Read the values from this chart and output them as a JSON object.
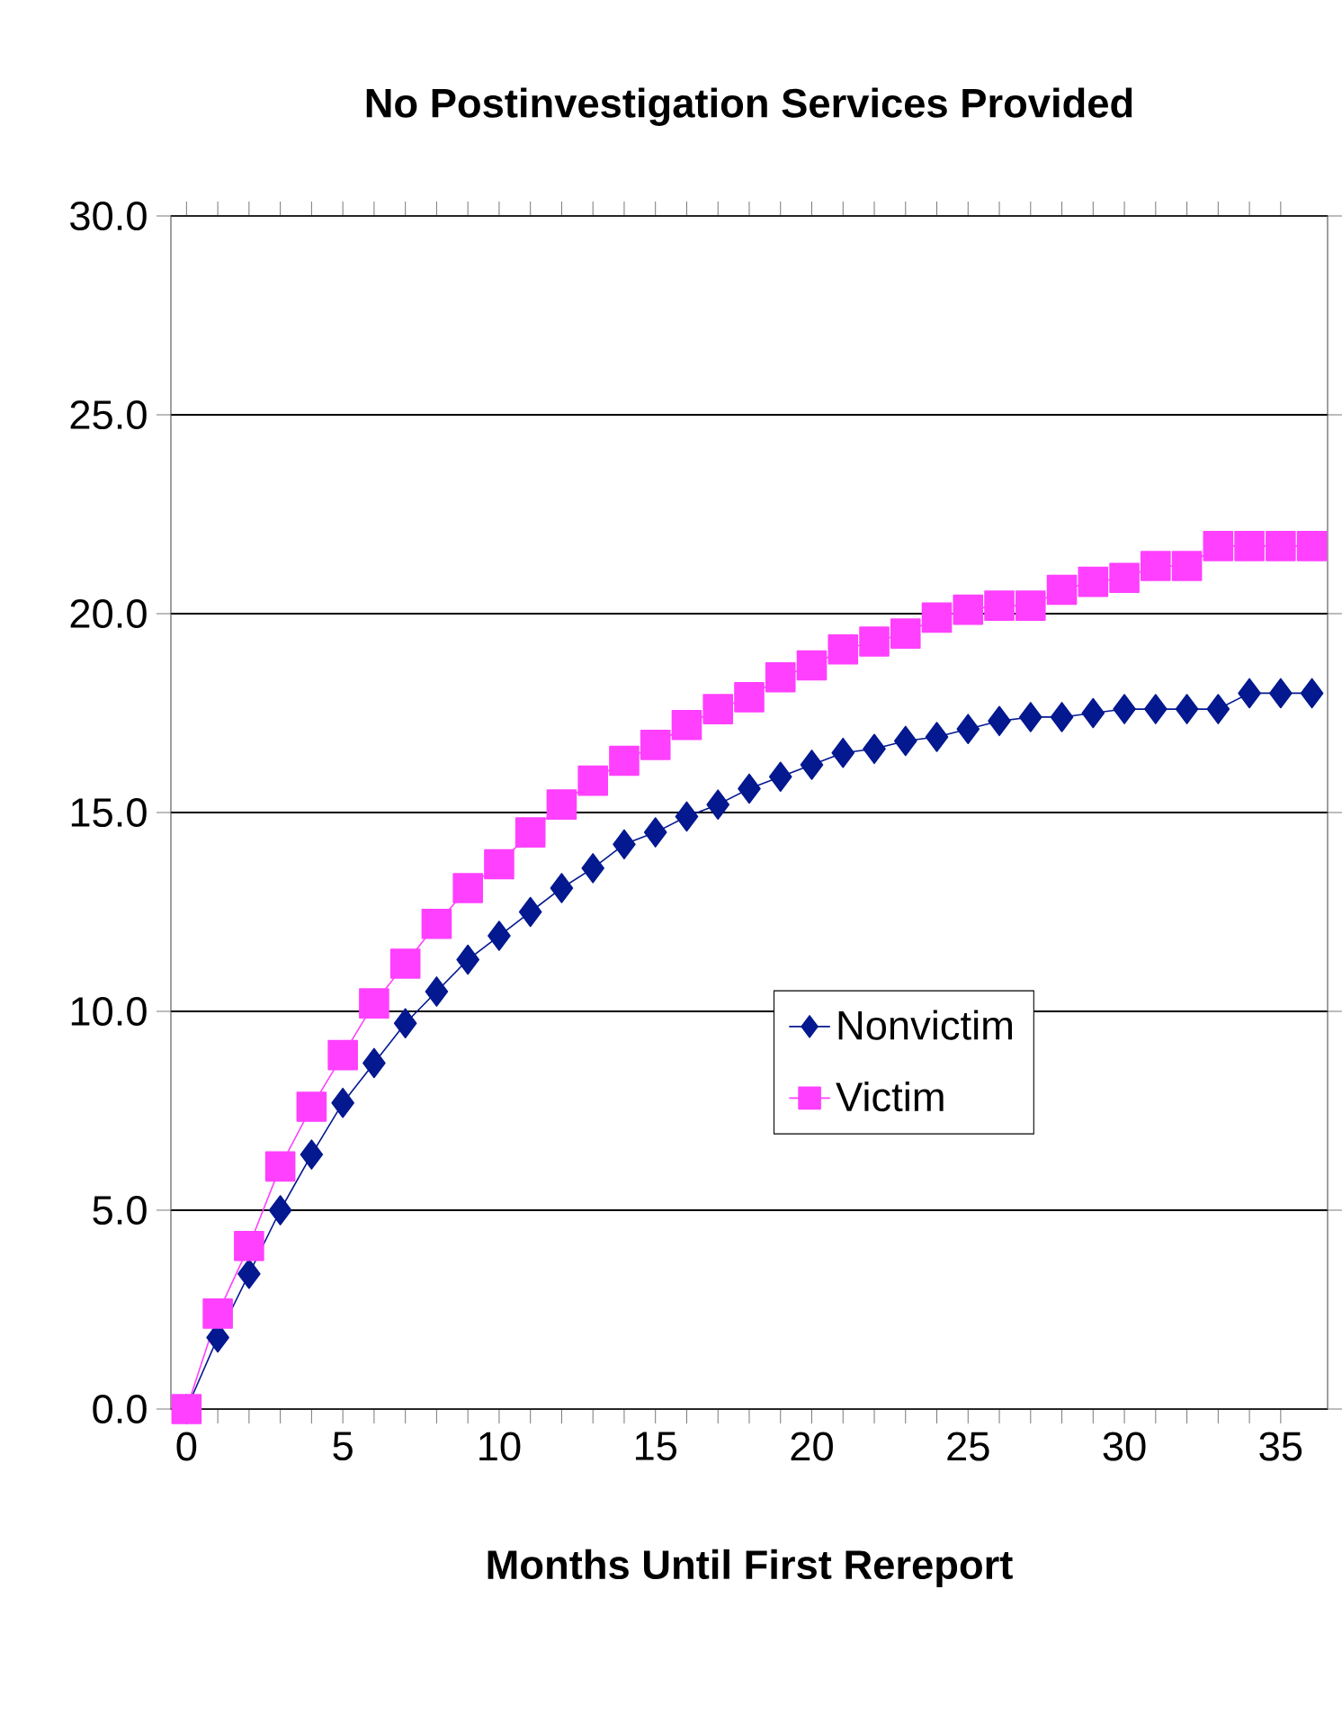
{
  "chart_data": {
    "type": "line",
    "title": "No Postinvestigation Services Provided",
    "xlabel": "Months Until First Rereport",
    "x": [
      0,
      1,
      2,
      3,
      4,
      5,
      6,
      7,
      8,
      9,
      10,
      11,
      12,
      13,
      14,
      15,
      16,
      17,
      18,
      19,
      20,
      21,
      22,
      23,
      24,
      25,
      26,
      27,
      28,
      29,
      30,
      31,
      32,
      33,
      34,
      35,
      36
    ],
    "series": [
      {
        "name": "Nonvictim",
        "color": "#041890",
        "marker": "diamond",
        "values": [
          0,
          1.8,
          3.4,
          5.0,
          6.4,
          7.7,
          8.7,
          9.7,
          10.5,
          11.3,
          11.9,
          12.5,
          13.1,
          13.6,
          14.2,
          14.5,
          14.9,
          15.2,
          15.6,
          15.9,
          16.2,
          16.5,
          16.6,
          16.8,
          16.9,
          17.1,
          17.3,
          17.4,
          17.4,
          17.5,
          17.6,
          17.6,
          17.6,
          17.6,
          18.0,
          18.0,
          18.0
        ]
      },
      {
        "name": "Victim",
        "color": "#ff40ff",
        "marker": "square",
        "values": [
          0,
          2.4,
          4.1,
          6.1,
          7.6,
          8.9,
          10.2,
          11.2,
          12.2,
          13.1,
          13.7,
          14.5,
          15.2,
          15.8,
          16.3,
          16.7,
          17.2,
          17.6,
          17.9,
          18.4,
          18.7,
          19.1,
          19.3,
          19.5,
          19.9,
          20.1,
          20.2,
          20.2,
          20.6,
          20.8,
          20.9,
          21.2,
          21.2,
          21.7,
          21.7,
          21.7,
          21.7
        ]
      }
    ],
    "xlim": [
      -0.5,
      36.5
    ],
    "xticks": [
      0,
      5,
      10,
      15,
      20,
      25,
      30,
      35
    ],
    "ylim": [
      0,
      30
    ],
    "yticks": [
      {
        "value": 0,
        "label": "0.0"
      },
      {
        "value": 5,
        "label": "5.0"
      },
      {
        "value": 10,
        "label": "10.0"
      },
      {
        "value": 15,
        "label": "15.0"
      },
      {
        "value": 20,
        "label": "20.0"
      },
      {
        "value": 25,
        "label": "25.0"
      },
      {
        "value": 30,
        "label": "30.0"
      }
    ],
    "grid": "y",
    "legend": "center right",
    "line_style": "solid"
  }
}
